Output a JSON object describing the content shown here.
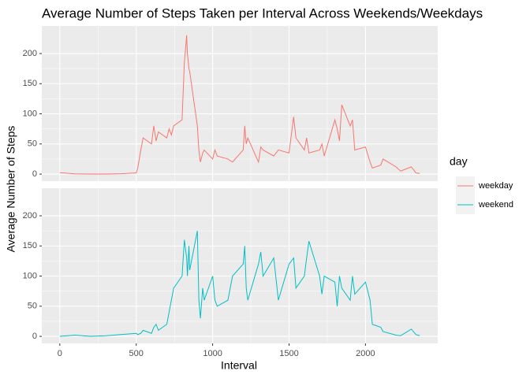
{
  "chart_data": {
    "type": "line",
    "title": "Average Number of Steps Taken per Interval Across Weekends/Weekdays",
    "x_label": "Interval",
    "y_label": "Average Number of Steps",
    "legend_title": "day",
    "x": [
      0,
      100,
      200,
      300,
      400,
      500,
      510,
      530,
      545,
      600,
      615,
      630,
      645,
      700,
      715,
      730,
      745,
      800,
      815,
      830,
      835,
      845,
      850,
      900,
      910,
      920,
      935,
      945,
      1000,
      1015,
      1030,
      1100,
      1130,
      1200,
      1210,
      1220,
      1230,
      1300,
      1315,
      1330,
      1400,
      1430,
      1500,
      1530,
      1545,
      1600,
      1615,
      1630,
      1700,
      1715,
      1730,
      1800,
      1815,
      1830,
      1845,
      1900,
      1915,
      1930,
      2000,
      2030,
      2045,
      2100,
      2115,
      2200,
      2230,
      2300,
      2330,
      2355
    ],
    "series": [
      {
        "name": "weekday",
        "color": "#F8766D",
        "values": [
          2.3,
          0.4,
          0,
          0,
          0.5,
          2,
          10,
          40,
          60,
          50,
          80,
          55,
          70,
          60,
          75,
          65,
          80,
          90,
          185,
          230.4,
          200,
          175,
          170,
          80,
          40,
          20,
          35,
          40,
          25,
          40,
          30,
          25,
          20,
          40,
          80,
          50,
          60,
          20,
          45,
          40,
          30,
          40,
          35,
          95,
          60,
          40,
          60,
          35,
          40,
          50,
          30,
          90,
          75,
          55,
          115,
          80,
          90,
          40,
          45,
          20,
          10,
          15,
          25,
          12,
          5,
          12,
          2,
          1
        ]
      },
      {
        "name": "weekend",
        "color": "#00BFC4",
        "values": [
          0,
          2,
          0,
          1,
          3,
          5,
          3,
          5,
          10,
          5,
          15,
          20,
          10,
          20,
          40,
          60,
          80,
          100,
          160,
          130,
          100,
          150,
          110,
          175,
          60,
          30,
          80,
          60,
          100,
          60,
          50,
          60,
          100,
          120,
          150,
          80,
          60,
          120,
          140,
          100,
          130,
          60,
          120,
          130,
          80,
          100,
          130,
          158,
          100,
          70,
          100,
          90,
          50,
          100,
          80,
          60,
          100,
          70,
          90,
          60,
          20,
          15,
          8,
          2,
          1,
          12,
          3,
          1
        ]
      }
    ],
    "xlim": [
      -117.75,
      2472.75
    ],
    "xticks": [
      0,
      500,
      1000,
      1500,
      2000
    ],
    "ylim": [
      -11.7,
      245.7
    ],
    "yticks": [
      0,
      50,
      100,
      150,
      200
    ],
    "grid": true
  }
}
